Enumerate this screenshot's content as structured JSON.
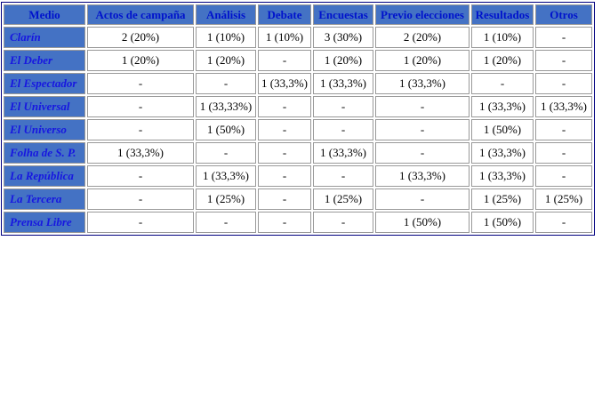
{
  "chart_data": {
    "type": "table",
    "columns": [
      "Medio",
      "Actos de campaña",
      "Análisis",
      "Debate",
      "Encuestas",
      "Previo elecciones",
      "Resultados",
      "Otros"
    ],
    "rows": [
      {
        "label": "Clarín",
        "values": [
          "2 (20%)",
          "1 (10%)",
          "1 (10%)",
          "3 (30%)",
          "2 (20%)",
          "1 (10%)",
          "-"
        ]
      },
      {
        "label": "El Deber",
        "values": [
          "1 (20%)",
          "1 (20%)",
          "-",
          "1 (20%)",
          "1 (20%)",
          "1 (20%)",
          "-"
        ]
      },
      {
        "label": "El Espectador",
        "values": [
          "-",
          "-",
          "1 (33,3%)",
          "1 (33,3%)",
          "1 (33,3%)",
          "-",
          "-"
        ]
      },
      {
        "label": "El Universal",
        "values": [
          "-",
          "1 (33,33%)",
          "-",
          "-",
          "-",
          "1 (33,3%)",
          "1 (33,3%)"
        ]
      },
      {
        "label": "El Universo",
        "values": [
          "-",
          "1 (50%)",
          "-",
          "-",
          "-",
          "1 (50%)",
          "-"
        ]
      },
      {
        "label": "Folha de S. P.",
        "values": [
          "1 (33,3%)",
          "-",
          "-",
          "1 (33,3%)",
          "-",
          "1 (33,3%)",
          "-"
        ]
      },
      {
        "label": "La República",
        "values": [
          "-",
          "1 (33,3%)",
          "-",
          "-",
          "1 (33,3%)",
          "1 (33,3%)",
          "-"
        ]
      },
      {
        "label": "La Tercera",
        "values": [
          "-",
          "1 (25%)",
          "-",
          "1 (25%)",
          "-",
          "1 (25%)",
          "1 (25%)"
        ]
      },
      {
        "label": "Prensa Libre",
        "values": [
          "-",
          "-",
          "-",
          "-",
          "1 (50%)",
          "1 (50%)",
          "-"
        ]
      }
    ]
  },
  "colors": {
    "header_bg": "#4472C4",
    "header_text": "#0013CC",
    "label_text": "#1717E0",
    "cell_text": "#000000",
    "cell_border": "#999999",
    "table_border": "#000080",
    "page_bg": "#FFFFFF"
  }
}
